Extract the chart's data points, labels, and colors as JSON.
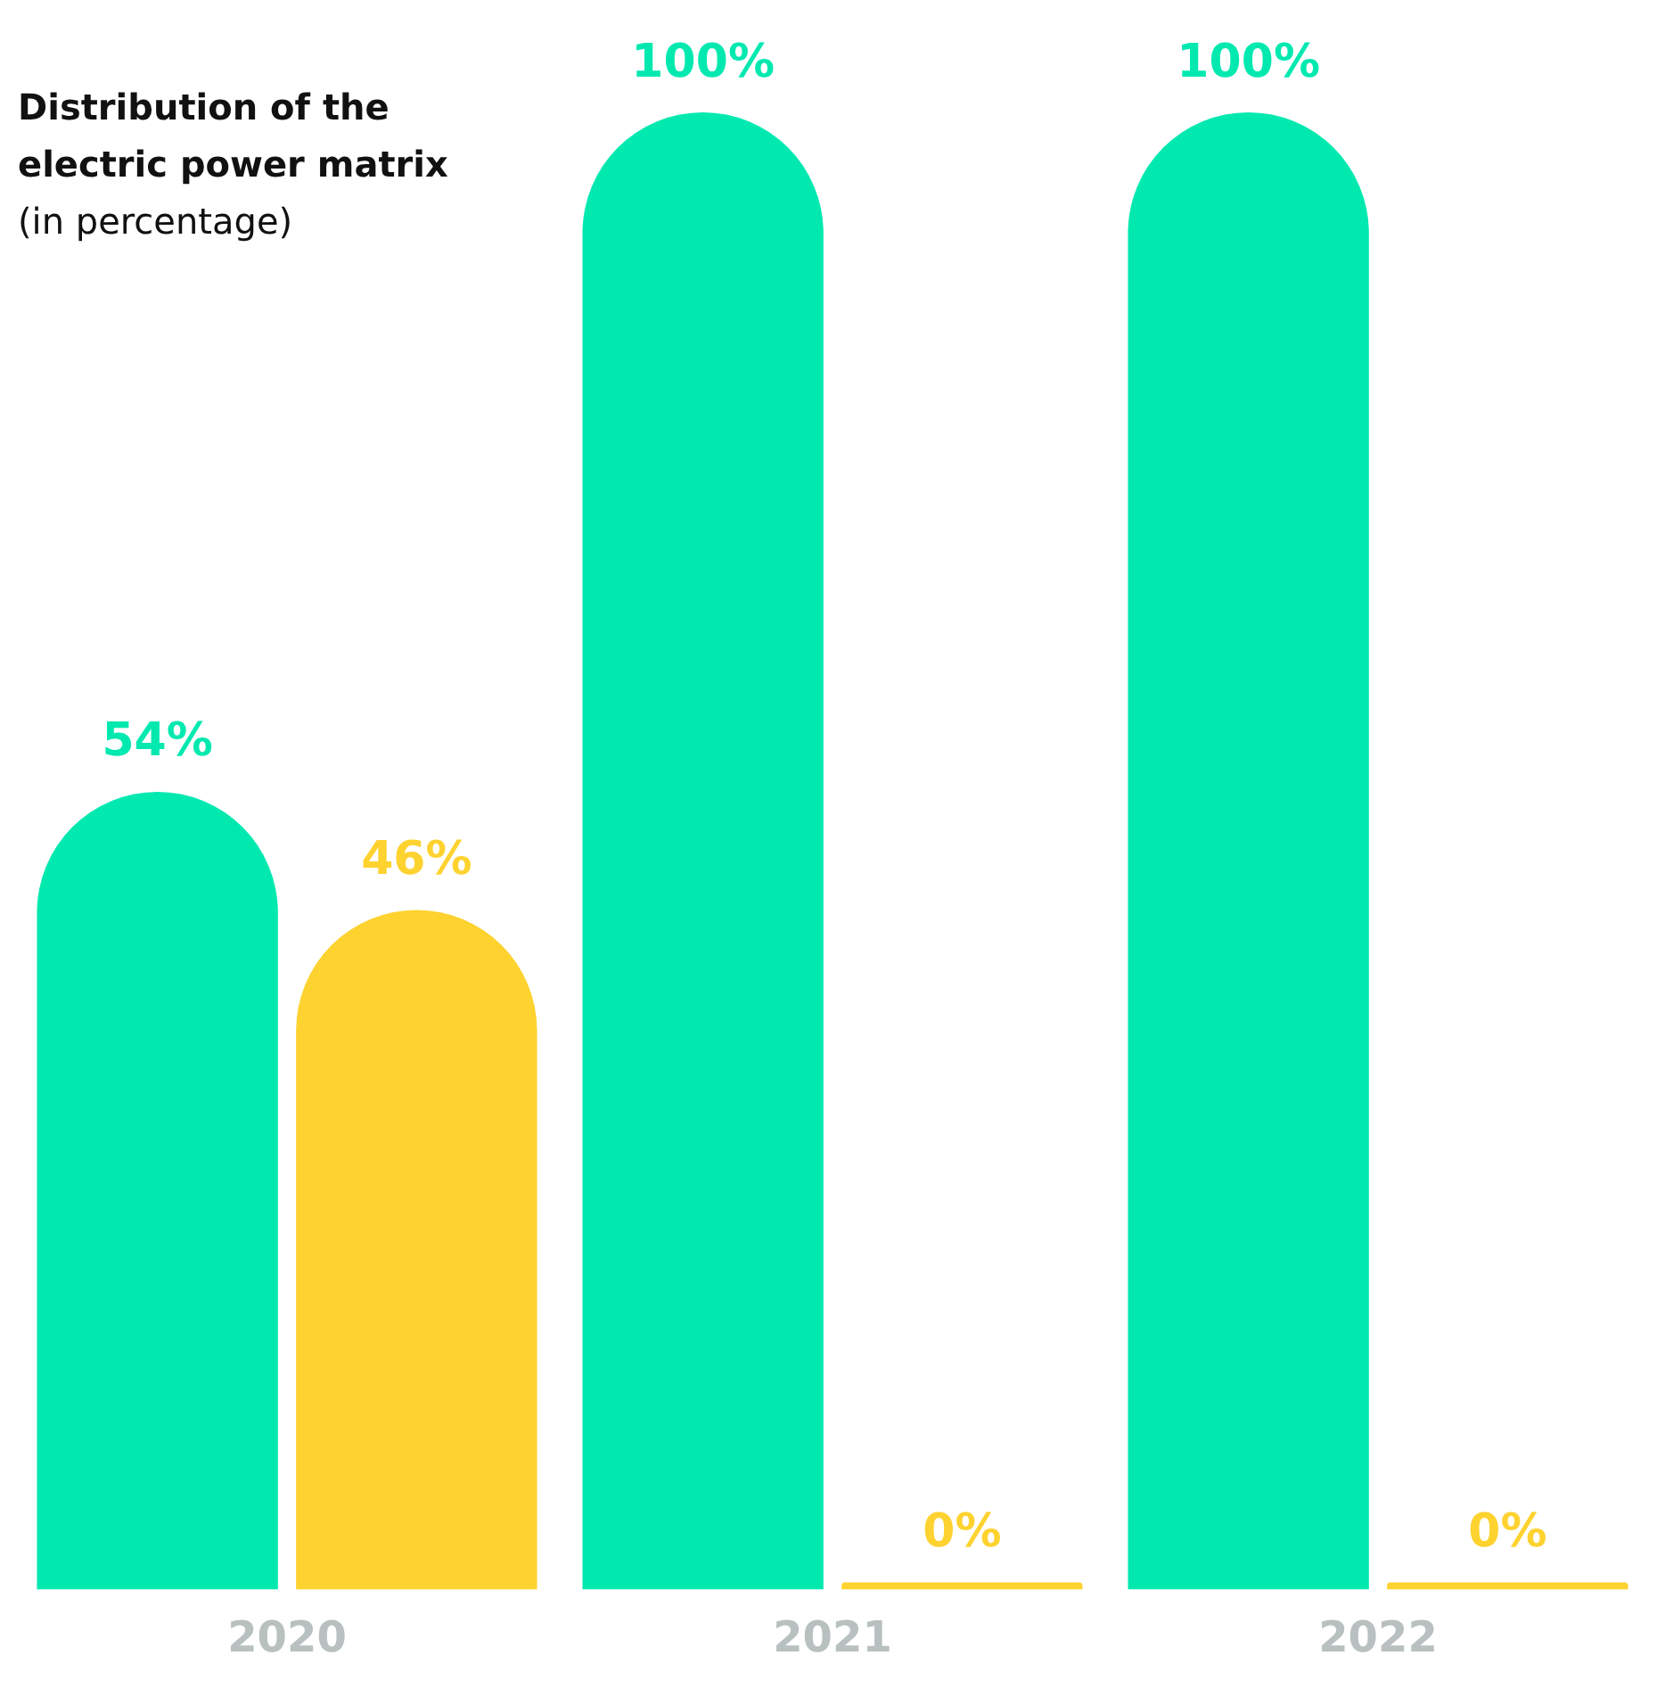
{
  "chart_data": {
    "type": "bar",
    "title": "Distribution of the electric power matrix",
    "subtitle": "(in percentage)",
    "categories": [
      "2020",
      "2021",
      "2022"
    ],
    "series": [
      {
        "color": "#02e9b0",
        "values": [
          54,
          100,
          100
        ],
        "value_labels": [
          "54%",
          "100%",
          "100%"
        ]
      },
      {
        "color": "#fed22f",
        "values": [
          46,
          0,
          0
        ],
        "value_labels": [
          "46%",
          "0%",
          "0%"
        ]
      }
    ],
    "ylim": [
      0,
      100
    ],
    "tick_labels": "x",
    "grid": false,
    "legend": false
  }
}
